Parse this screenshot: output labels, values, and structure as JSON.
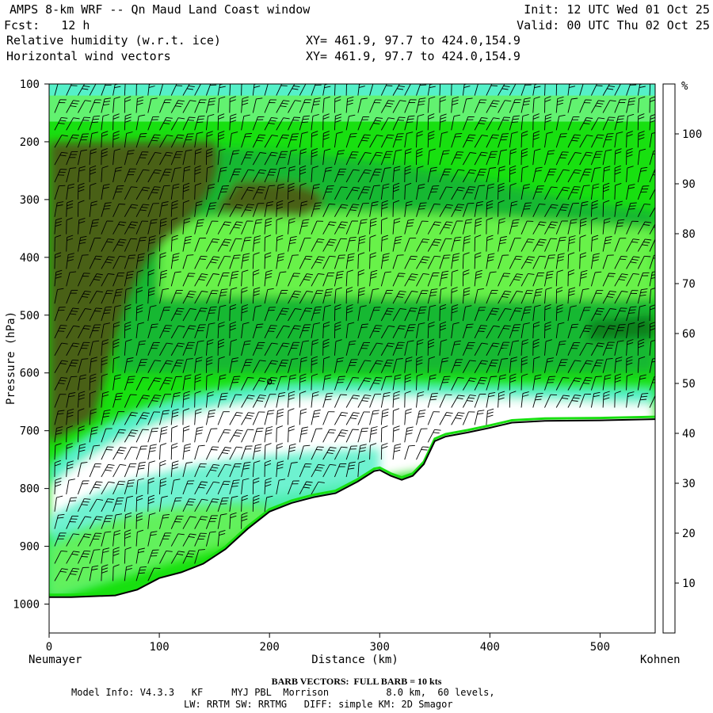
{
  "header": {
    "title": "AMPS 8-km WRF -- Qn Maud Land Coast window",
    "fcst": "Fcst:   12 h",
    "field1": "Relative humidity (w.r.t. ice)",
    "field2": "Horizontal wind vectors",
    "xy1": "XY= 461.9, 97.7 to 424.0,154.9",
    "xy2": "XY= 461.9, 97.7 to 424.0,154.9",
    "init": "Init: 12 UTC Wed 01 Oct 25",
    "valid": "Valid: 00 UTC Thu 02 Oct 25"
  },
  "footer": {
    "barb": "BARB VECTORS:  FULL BARB = 10 kts",
    "model1": "Model Info: V4.3.3   KF     MYJ PBL  Morrison          8.0 km,  60 levels,",
    "model2": "LW: RRTM SW: RRTMG   DIFF: simple KM: 2D Smagor"
  },
  "chart_data": {
    "type": "heatmap",
    "xlabel": "Distance (km)",
    "ylabel": "Pressure (hPa)",
    "x_ticks": [
      "0",
      "100",
      "200",
      "300",
      "400",
      "500"
    ],
    "y_ticks": [
      "100",
      "200",
      "300",
      "400",
      "500",
      "600",
      "700",
      "800",
      "900",
      "1000"
    ],
    "xlim": [
      0,
      550
    ],
    "ylim": [
      1050,
      100
    ],
    "endpoint_left": "Neumayer",
    "endpoint_right": "Kohnen",
    "colorbar_unit": "%",
    "colorbar_levels": [
      "10",
      "20",
      "30",
      "40",
      "50",
      "60",
      "70",
      "80",
      "90",
      "100"
    ],
    "colorbar_colors": [
      "#ffffff",
      "#ffffff",
      "#ffffff",
      "#d5fbe8",
      "#55f0c8",
      "#38e8a2",
      "#68f24a",
      "#18e010",
      "#12b830",
      "#08801c",
      "#4a6018"
    ],
    "terrain_surface": {
      "x": [
        0,
        20,
        60,
        80,
        100,
        120,
        140,
        160,
        180,
        200,
        220,
        240,
        260,
        280,
        295,
        300,
        310,
        320,
        330,
        340,
        350,
        360,
        380,
        400,
        420,
        450,
        500,
        550
      ],
      "p": [
        988,
        988,
        985,
        975,
        955,
        945,
        930,
        905,
        870,
        840,
        825,
        815,
        808,
        788,
        770,
        768,
        778,
        785,
        778,
        758,
        718,
        710,
        703,
        695,
        686,
        683,
        682,
        680
      ]
    },
    "rh_regions": [
      {
        "name": "upper-dry-band",
        "p_range": [
          100,
          160
        ],
        "rh": 45
      },
      {
        "name": "moist-core-west",
        "x_range": [
          0,
          100
        ],
        "p_range": [
          200,
          650
        ],
        "rh": 100
      },
      {
        "name": "moist-layer",
        "x_range": [
          100,
          550
        ],
        "p_range": [
          220,
          600
        ],
        "rh": 80
      },
      {
        "name": "dry-layer",
        "x_range": [
          0,
          550
        ],
        "p_range": [
          600,
          780
        ],
        "rh": 20
      },
      {
        "name": "lower-moist",
        "x_range": [
          0,
          250
        ],
        "p_range": [
          780,
          985
        ],
        "rh": 60
      }
    ],
    "wind_barb_columns": 52,
    "wind_barb_rows": [
      120,
      150,
      180,
      210,
      240,
      270,
      300,
      330,
      360,
      390,
      420,
      450,
      480,
      510,
      540,
      570,
      600,
      630,
      660,
      690,
      720,
      750,
      780,
      810,
      840,
      870,
      900,
      930,
      960
    ],
    "marker": {
      "symbol": "o",
      "x": 200,
      "p": 615
    }
  }
}
